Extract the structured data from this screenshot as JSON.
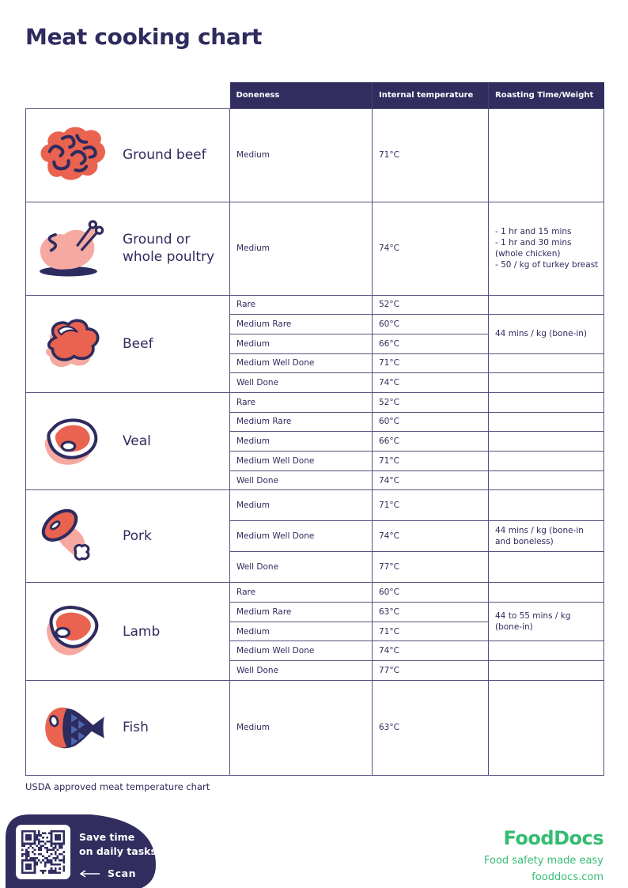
{
  "title": "Meat cooking chart",
  "footnote": "USDA approved meat temperature chart",
  "colors": {
    "navy": "#2e2b5e",
    "header_bg": "#312d5f",
    "coral": "#e96350",
    "pink": "#f5a9a0",
    "scale_blue": "#4a67b0",
    "brand_green": "#35bc72",
    "border": "#55527f"
  },
  "table": {
    "headers": {
      "doneness": "Doneness",
      "temperature": "Internal temperature",
      "roasting": "Roasting Time/Weight"
    },
    "sections": [
      {
        "name": "Ground beef",
        "icon": "ground-beef-icon",
        "rows": [
          {
            "doneness": "Medium",
            "temperature": "71°C",
            "roasting": ""
          }
        ]
      },
      {
        "name": "Ground or whole poultry",
        "icon": "poultry-icon",
        "rows": [
          {
            "doneness": "Medium",
            "temperature": "74°C",
            "roasting": "- 1 hr and 15 mins\n- 1 hr and 30 mins (whole chicken)\n- 50 / kg of turkey breast"
          }
        ]
      },
      {
        "name": "Beef",
        "icon": "beef-icon",
        "rows": [
          {
            "doneness": "Rare",
            "temperature": "52°C",
            "roasting": ""
          },
          {
            "doneness": "Medium Rare",
            "temperature": "60°C",
            "roasting": "44 mins / kg (bone-in)"
          },
          {
            "doneness": "Medium",
            "temperature": "66°C"
          },
          {
            "doneness": "Medium Well Done",
            "temperature": "71°C",
            "roasting": ""
          },
          {
            "doneness": "Well Done",
            "temperature": "74°C",
            "roasting": ""
          }
        ]
      },
      {
        "name": "Veal",
        "icon": "veal-icon",
        "rows": [
          {
            "doneness": "Rare",
            "temperature": "52°C",
            "roasting": ""
          },
          {
            "doneness": "Medium Rare",
            "temperature": "60°C",
            "roasting": ""
          },
          {
            "doneness": "Medium",
            "temperature": "66°C",
            "roasting": ""
          },
          {
            "doneness": "Medium Well Done",
            "temperature": "71°C",
            "roasting": ""
          },
          {
            "doneness": "Well Done",
            "temperature": "74°C",
            "roasting": ""
          }
        ]
      },
      {
        "name": "Pork",
        "icon": "pork-icon",
        "rows": [
          {
            "doneness": "Medium",
            "temperature": "71°C",
            "roasting": ""
          },
          {
            "doneness": "Medium Well Done",
            "temperature": "74°C",
            "roasting": "44 mins / kg (bone-in and boneless)"
          },
          {
            "doneness": "Well Done",
            "temperature": "77°C",
            "roasting": ""
          }
        ]
      },
      {
        "name": "Lamb",
        "icon": "lamb-icon",
        "rows": [
          {
            "doneness": "Rare",
            "temperature": "60°C",
            "roasting": ""
          },
          {
            "doneness": "Medium Rare",
            "temperature": "63°C",
            "roasting": "44 to 55 mins / kg (bone-in)"
          },
          {
            "doneness": "Medium",
            "temperature": "71°C"
          },
          {
            "doneness": "Medium Well Done",
            "temperature": "74°C",
            "roasting": ""
          },
          {
            "doneness": "Well Done",
            "temperature": "77°C",
            "roasting": ""
          }
        ]
      },
      {
        "name": "Fish",
        "icon": "fish-icon",
        "rows": [
          {
            "doneness": "Medium",
            "temperature": "63°C",
            "roasting": ""
          }
        ]
      }
    ]
  },
  "promo": {
    "headline": "Save time\non daily tasks",
    "scan_label": "Scan"
  },
  "brand": {
    "logo": "FoodDocs",
    "tagline": "Food safety made easy",
    "website": "fooddocs.com"
  }
}
